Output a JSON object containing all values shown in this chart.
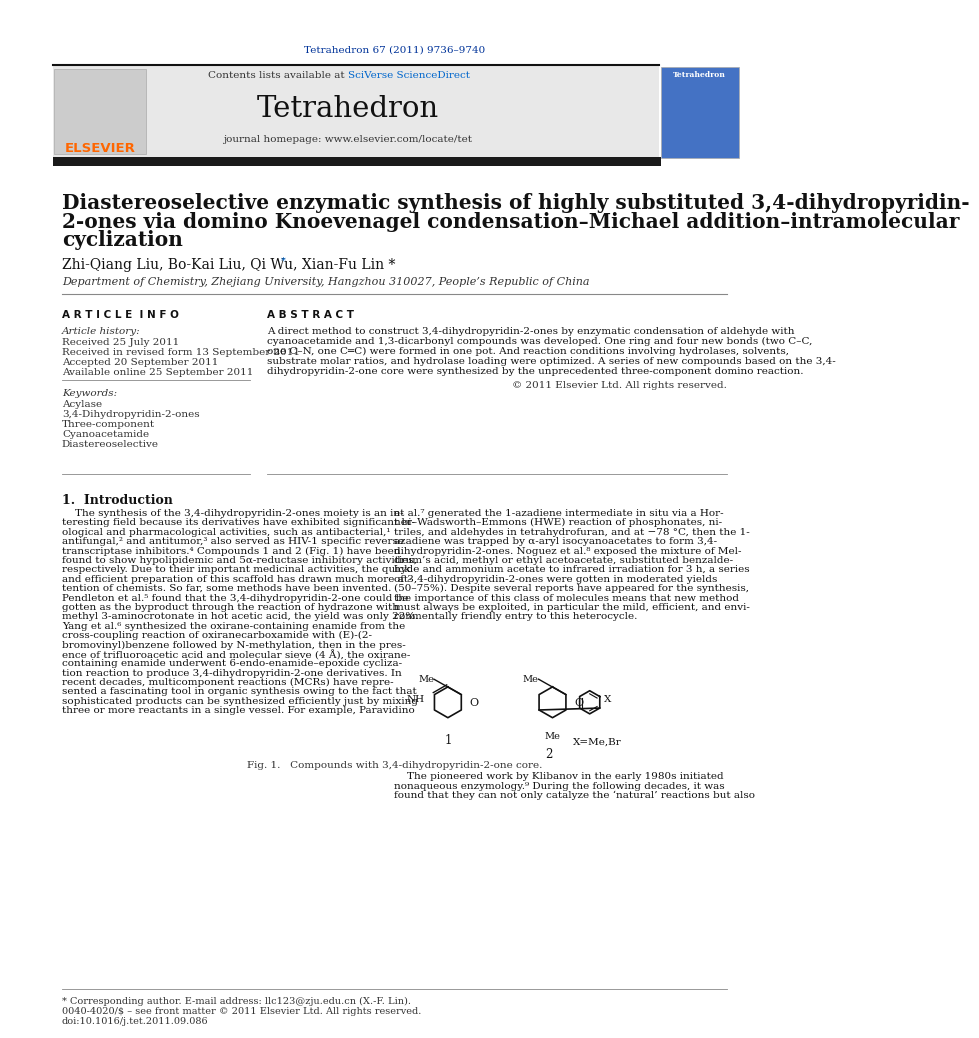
{
  "page_bg": "#ffffff",
  "top_journal_ref": "Tetrahedron 67 (2011) 9736–9740",
  "journal_ref_color": "#003399",
  "header_bg": "#e8e8e8",
  "header_text_contents": "Contents lists available at ",
  "header_sciverse": "SciVerse ScienceDirect",
  "header_sciverse_color": "#0066cc",
  "journal_name": "Tetrahedron",
  "journal_homepage": "journal homepage: www.elsevier.com/locate/tet",
  "thick_bar_color": "#1a1a1a",
  "article_title_line1": "Diastereoselective enzymatic synthesis of highly substituted 3,4-dihydropyridin-",
  "article_title_line2": "2-ones via domino Knoevenagel condensation–Michael addition–intramolecular",
  "article_title_line3": "cyclization",
  "authors": "Zhi-Qiang Liu, Bo-Kai Liu, Qi Wu, Xian-Fu Lin *",
  "affiliation": "Department of Chemistry, Zhejiang University, Hangzhou 310027, People’s Republic of China",
  "article_info_label": "A R T I C L E  I N F O",
  "abstract_label": "A B S T R A C T",
  "article_history_label": "Article history:",
  "received1": "Received 25 July 2011",
  "received2": "Received in revised form 13 September 2011",
  "accepted": "Accepted 20 September 2011",
  "available": "Available online 25 September 2011",
  "keywords_label": "Keywords:",
  "keyword1": "Acylase",
  "keyword2": "3,4-Dihydropyridin-2-ones",
  "keyword3": "Three-component",
  "keyword4": "Cyanoacetamide",
  "keyword5": "Diastereoselective",
  "copyright": "© 2011 Elsevier Ltd. All rights reserved.",
  "intro_heading": "1.  Introduction",
  "fig_caption": "Fig. 1.   Compounds with 3,4-dihydropyridin-2-one core.",
  "footnote_asterisk": "* Corresponding author. E-mail address: llc123@zju.edu.cn (X.-F. Lin).",
  "footnote_issn": "0040-4020/$ – see front matter © 2011 Elsevier Ltd. All rights reserved.",
  "footnote_doi": "doi:10.1016/j.tet.2011.09.086",
  "elsevier_color": "#ff6600",
  "text_color": "#000000",
  "small_text_color": "#333333",
  "abstract_lines": [
    "A direct method to construct 3,4-dihydropyridin-2-ones by enzymatic condensation of aldehyde with",
    "cyanoacetamide and 1,3-dicarbonyl compounds was developed. One ring and four new bonds (two C–C,",
    "one C–N, one C═C) were formed in one pot. And reaction conditions involving hydrolases, solvents,",
    "substrate molar ratios, and hydrolase loading were optimized. A series of new compounds based on the 3,4-",
    "dihydropyridin-2-one core were synthesized by the unprecedented three-component domino reaction."
  ],
  "intro1_lines": [
    "    The synthesis of the 3,4-dihydropyridin-2-ones moiety is an in-",
    "teresting field because its derivatives have exhibited significant bi-",
    "ological and pharmacological activities, such as antibacterial,¹",
    "antifungal,² and antitumor,³ also served as HIV-1 specific reverse",
    "transcriptase inhibitors.⁴ Compounds 1 and 2 (Fig. 1) have been",
    "found to show hypolipidemic and 5α-reductase inhibitory activities,",
    "respectively. Due to their important medicinal activities, the quick",
    "and efficient preparation of this scaffold has drawn much more at-",
    "tention of chemists. So far, some methods have been invented.",
    "Pendleton et al.⁵ found that the 3,4-dihydropyridin-2-one could be",
    "gotten as the byproduct through the reaction of hydrazone with",
    "methyl 3-aminocrotonate in hot acetic acid, the yield was only 22%.",
    "Yang et al.⁶ synthesized the oxirane-containing enamide from the",
    "cross-coupling reaction of oxiranecarboxamide with (E)-(2-",
    "bromovinyl)benzene followed by N-methylation, then in the pres-",
    "ence of trifluoroacetic acid and molecular sieve (4 Å), the oxirane-",
    "containing enamide underwent 6-endo-enamide–epoxide cycliza-",
    "tion reaction to produce 3,4-dihydropyridin-2-one derivatives. In",
    "recent decades, multicomponent reactions (MCRs) have repre-",
    "sented a fascinating tool in organic synthesis owing to the fact that",
    "sophisticated products can be synthesized efficiently just by mixing",
    "three or more reactants in a single vessel. For example, Paravidino"
  ],
  "intro2_lines": [
    "et al.⁷ generated the 1-azadiene intermediate in situ via a Hor-",
    "ner–Wadsworth–Emmons (HWE) reaction of phosphonates, ni-",
    "triles, and aldehydes in tetrahydrofuran, and at −78 °C, then the 1-",
    "azadiene was trapped by α-aryl isocyanoacetates to form 3,4-",
    "dihydropyridin-2-ones. Noguez et al.⁸ exposed the mixture of Mel-",
    "drum’s acid, methyl or ethyl acetoacetate, substituted benzalde-",
    "hyde and ammonium acetate to infrared irradiation for 3 h, a series",
    "of 3,4-dihydropyridin-2-ones were gotten in moderated yields",
    "(50–75%). Despite several reports have appeared for the synthesis,",
    "the importance of this class of molecules means that new method",
    "must always be exploited, in particular the mild, efficient, and envi-",
    "ronmentally friendly entry to this heterocycle."
  ],
  "pioneer_lines": [
    "    The pioneered work by Klibanov in the early 1980s initiated",
    "nonaqueous enzymology.⁹ During the following decades, it was",
    "found that they can not only catalyze the ‘natural’ reactions but also"
  ]
}
